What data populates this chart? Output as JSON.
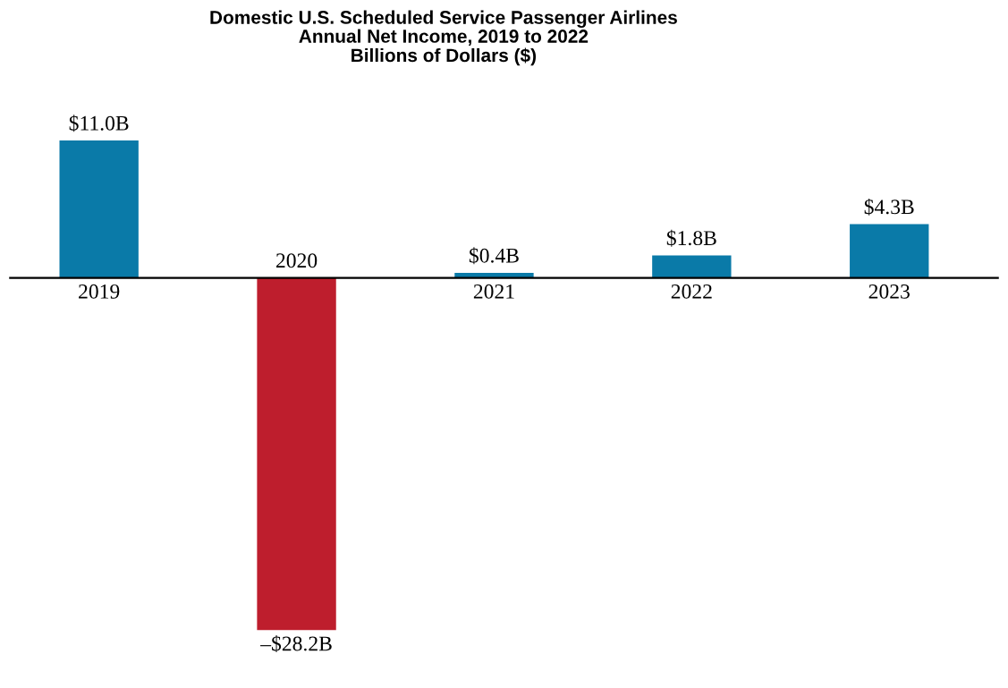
{
  "chart_data": {
    "type": "bar",
    "title": "Domestic U.S. Scheduled Service Passenger Airlines\nAnnual Net Income, 2019 to 2022\nBillions of Dollars ($)",
    "categories": [
      "2019",
      "2020",
      "2021",
      "2022",
      "2023"
    ],
    "values": [
      11.0,
      -28.2,
      0.4,
      1.8,
      4.3
    ],
    "colors": [
      "#0a7aa8",
      "#be1e2d",
      "#0a7aa8",
      "#0a7aa8",
      "#0a7aa8"
    ],
    "value_labels": [
      "$11.0B",
      "–$28.2B",
      "$0.4B",
      "$1.8B",
      "$4.3B"
    ]
  }
}
